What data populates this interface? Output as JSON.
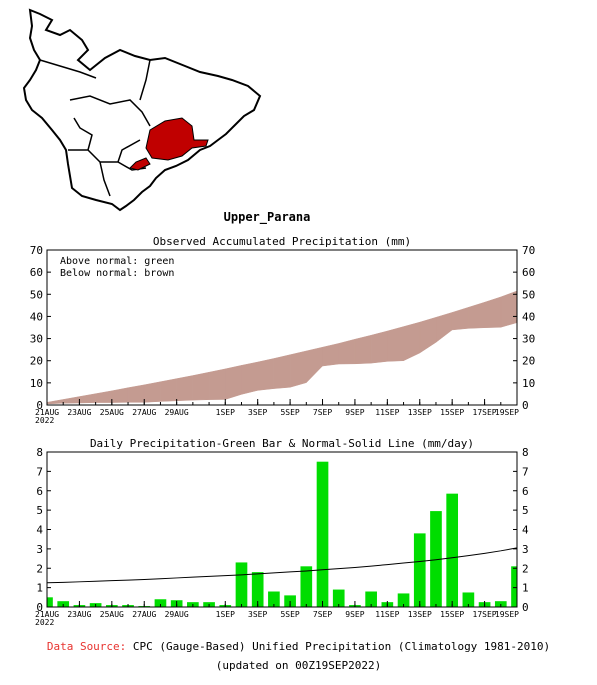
{
  "map": {
    "region_label": "Upper_Parana",
    "region_color": "#c00000"
  },
  "chart_data": [
    {
      "type": "area",
      "title": "Observed Accumulated Precipitation (mm)",
      "legend_lines": [
        "Above normal: green",
        "Below normal: brown"
      ],
      "legend_position": "top-left",
      "colors": {
        "below_normal_fill": "#c49b91",
        "above_normal_fill": "#00dd00"
      },
      "ylim": [
        0,
        70
      ],
      "yticks": [
        0,
        10,
        20,
        30,
        40,
        50,
        60,
        70
      ],
      "xtick_labels": [
        "21AUG\n2022",
        "23AUG",
        "25AUG",
        "27AUG",
        "29AUG",
        "1SEP",
        "3SEP",
        "5SEP",
        "7SEP",
        "9SEP",
        "11SEP",
        "13SEP",
        "15SEP",
        "17SEP",
        "19SEP"
      ],
      "x": [
        "21AUG",
        "22AUG",
        "23AUG",
        "24AUG",
        "25AUG",
        "26AUG",
        "27AUG",
        "28AUG",
        "29AUG",
        "30AUG",
        "31AUG",
        "1SEP",
        "2SEP",
        "3SEP",
        "4SEP",
        "5SEP",
        "6SEP",
        "7SEP",
        "8SEP",
        "9SEP",
        "10SEP",
        "11SEP",
        "12SEP",
        "13SEP",
        "14SEP",
        "15SEP",
        "16SEP",
        "17SEP",
        "18SEP",
        "19SEP"
      ],
      "series": [
        {
          "name": "Observed",
          "values": [
            0.5,
            0.8,
            0.9,
            1.1,
            1.1,
            1.2,
            1.2,
            1.6,
            1.9,
            2.2,
            2.4,
            2.5,
            4.8,
            6.6,
            7.4,
            8.0,
            10.1,
            17.6,
            18.5,
            18.6,
            18.9,
            19.7,
            20.0,
            23.5,
            28.3,
            33.9,
            34.6,
            34.9,
            35.1,
            37.2
          ]
        },
        {
          "name": "Normal",
          "values": [
            1.2,
            2.5,
            3.8,
            5.1,
            6.4,
            7.8,
            9.1,
            10.5,
            11.9,
            13.3,
            14.8,
            16.3,
            17.9,
            19.4,
            21.0,
            22.7,
            24.4,
            26.1,
            27.8,
            29.7,
            31.5,
            33.4,
            35.4,
            37.4,
            39.6,
            41.8,
            44.1,
            46.4,
            48.8,
            51.5
          ]
        }
      ]
    },
    {
      "type": "bar",
      "title": "Daily Precipitation-Green Bar & Normal-Solid Line (mm/day)",
      "colors": {
        "bar": "#00dd00",
        "normal_line": "#000000"
      },
      "ylim": [
        0,
        8
      ],
      "yticks": [
        0,
        1,
        2,
        3,
        4,
        5,
        6,
        7,
        8
      ],
      "xtick_labels": [
        "21AUG\n2022",
        "23AUG",
        "25AUG",
        "27AUG",
        "29AUG",
        "1SEP",
        "3SEP",
        "5SEP",
        "7SEP",
        "9SEP",
        "11SEP",
        "13SEP",
        "15SEP",
        "17SEP",
        "19SEP"
      ],
      "x": [
        "21AUG",
        "22AUG",
        "23AUG",
        "24AUG",
        "25AUG",
        "26AUG",
        "27AUG",
        "28AUG",
        "29AUG",
        "30AUG",
        "31AUG",
        "1SEP",
        "2SEP",
        "3SEP",
        "4SEP",
        "5SEP",
        "6SEP",
        "7SEP",
        "8SEP",
        "9SEP",
        "10SEP",
        "11SEP",
        "12SEP",
        "13SEP",
        "14SEP",
        "15SEP",
        "16SEP",
        "17SEP",
        "18SEP",
        "19SEP"
      ],
      "series": [
        {
          "name": "Daily Precipitation",
          "values": [
            0.5,
            0.3,
            0.1,
            0.2,
            0.1,
            0.1,
            0.05,
            0.4,
            0.35,
            0.25,
            0.25,
            0.1,
            2.3,
            1.8,
            0.8,
            0.6,
            2.1,
            7.5,
            0.9,
            0.1,
            0.8,
            0.25,
            0.7,
            3.8,
            4.95,
            5.85,
            0.75,
            0.25,
            0.3,
            2.1
          ]
        },
        {
          "name": "Normal",
          "values": [
            1.25,
            1.27,
            1.3,
            1.33,
            1.36,
            1.39,
            1.42,
            1.46,
            1.5,
            1.54,
            1.58,
            1.62,
            1.66,
            1.71,
            1.76,
            1.81,
            1.86,
            1.92,
            1.98,
            2.04,
            2.11,
            2.19,
            2.27,
            2.35,
            2.44,
            2.54,
            2.65,
            2.77,
            2.9,
            3.05
          ]
        }
      ]
    }
  ],
  "footer": {
    "source_label": "Data Source:",
    "source_text": " CPC (Gauge-Based) Unified Precipitation (Climatology 1981-2010)",
    "updated": "(updated on 00Z19SEP2022)",
    "source_label_color": "#e8332f"
  }
}
